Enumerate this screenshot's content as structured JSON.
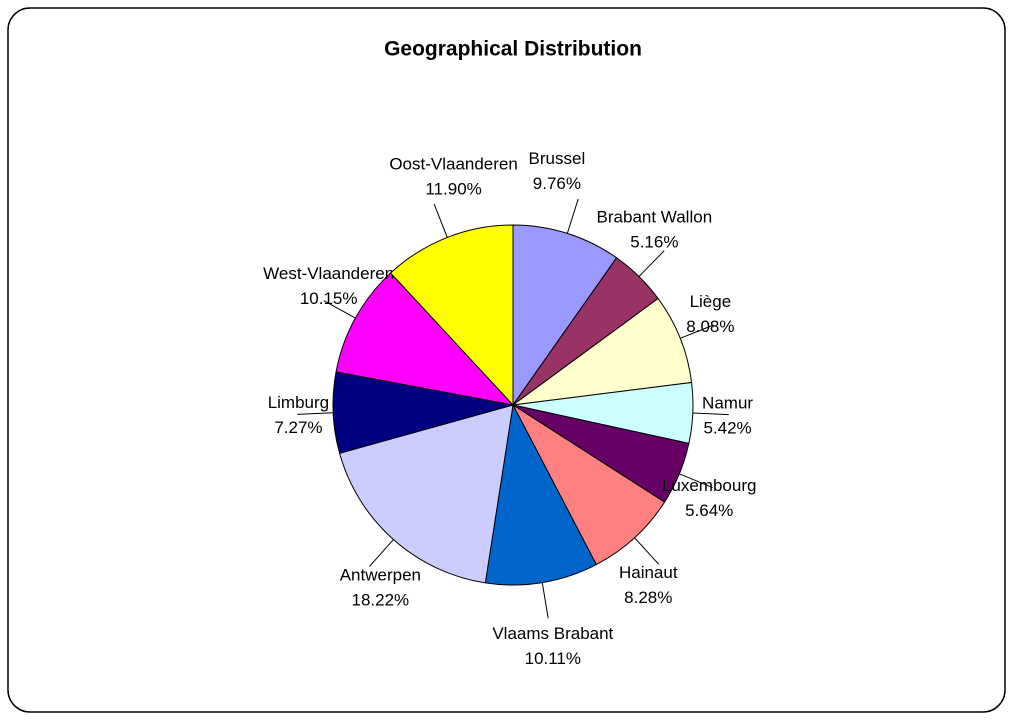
{
  "chart_data": {
    "type": "pie",
    "title": "Geographical Distribution",
    "categories": [
      "Brussel",
      "Brabant Wallon",
      "Liège",
      "Namur",
      "Luxembourg",
      "Hainaut",
      "Vlaams Brabant",
      "Antwerpen",
      "Limburg",
      "West-Vlaanderen",
      "Oost-Vlaanderen"
    ],
    "values": [
      9.76,
      5.16,
      8.08,
      5.42,
      5.64,
      8.28,
      10.11,
      18.22,
      7.27,
      10.15,
      11.9
    ],
    "value_labels": [
      "9.76%",
      "5.16%",
      "8.08%",
      "5.42%",
      "5.64%",
      "8.28%",
      "10.11%",
      "18.22%",
      "7.27%",
      "10.15%",
      "11.90%"
    ],
    "colors": [
      "#9999ff",
      "#993366",
      "#ffffcc",
      "#ccffff",
      "#660066",
      "#ff8080",
      "#0066cc",
      "#ccccff",
      "#000080",
      "#ff00ff",
      "#ffff00"
    ]
  }
}
